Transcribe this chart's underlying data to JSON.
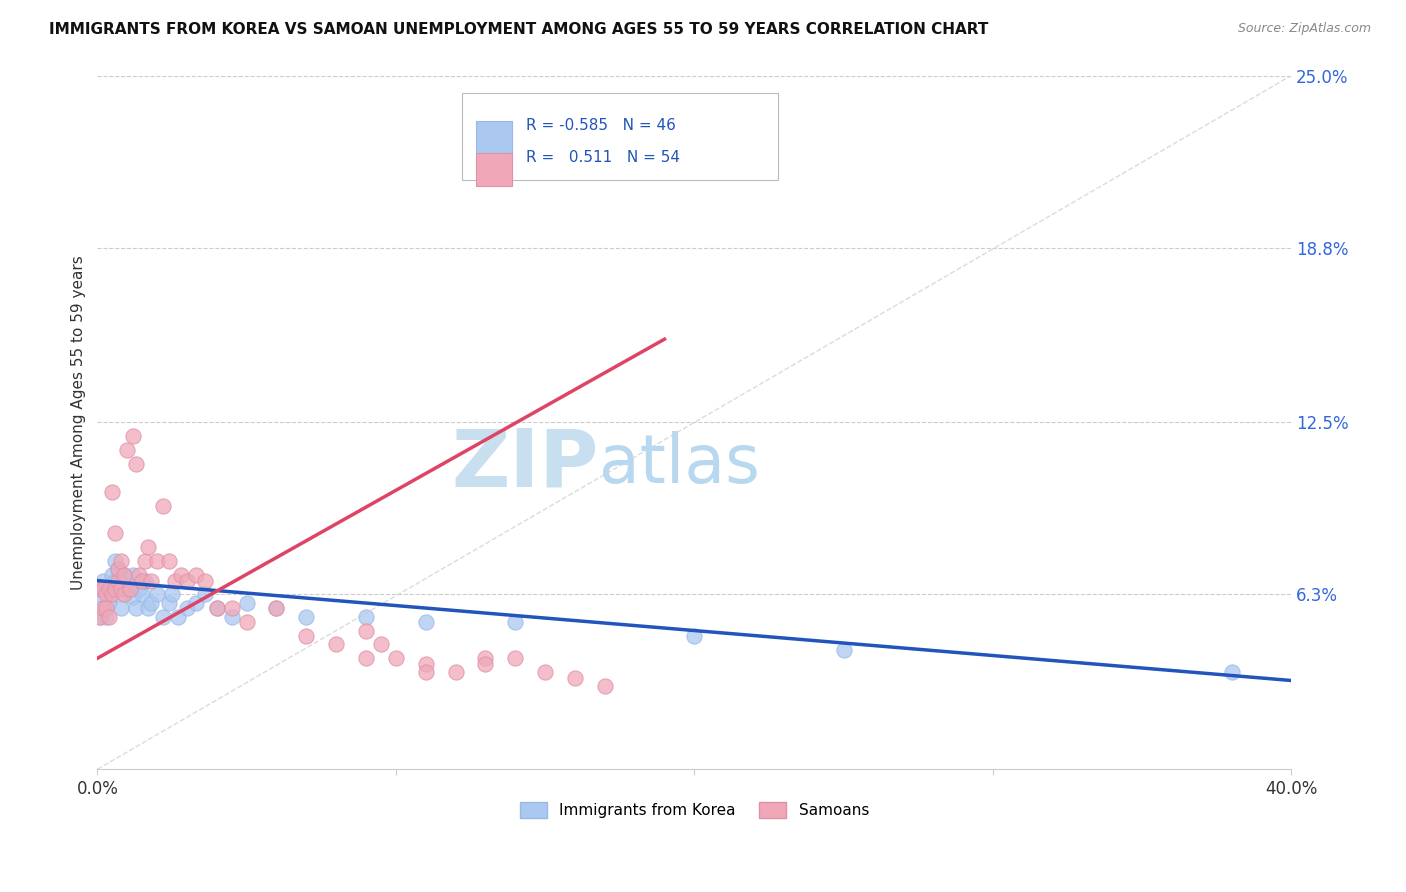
{
  "title": "IMMIGRANTS FROM KOREA VS SAMOAN UNEMPLOYMENT AMONG AGES 55 TO 59 YEARS CORRELATION CHART",
  "source": "Source: ZipAtlas.com",
  "ylabel": "Unemployment Among Ages 55 to 59 years",
  "xlim": [
    0.0,
    0.4
  ],
  "ylim": [
    0.0,
    0.25
  ],
  "xticks": [
    0.0,
    0.1,
    0.2,
    0.3,
    0.4
  ],
  "xticklabels": [
    "0.0%",
    "",
    "",
    "",
    "40.0%"
  ],
  "ytick_positions": [
    0.063,
    0.125,
    0.188,
    0.25
  ],
  "ytick_labels": [
    "6.3%",
    "12.5%",
    "18.8%",
    "25.0%"
  ],
  "background_color": "#ffffff",
  "watermark_zip": "ZIP",
  "watermark_atlas": "atlas",
  "watermark_zip_color": "#c8dff0",
  "watermark_atlas_color": "#b8d8f0",
  "korea_color": "#aac8f0",
  "korea_edge_color": "#99b8e8",
  "samoan_color": "#f0a8b8",
  "samoan_edge_color": "#e090a8",
  "korea_line_color": "#2255bb",
  "samoan_line_color": "#dd4466",
  "dashed_line_color": "#cccccc",
  "legend_korea_label": "Immigrants from Korea",
  "legend_samoan_label": "Samoans",
  "korea_R": -0.585,
  "korea_N": 46,
  "samoan_R": 0.511,
  "samoan_N": 54,
  "korea_scatter_x": [
    0.001,
    0.001,
    0.002,
    0.002,
    0.003,
    0.003,
    0.004,
    0.005,
    0.005,
    0.006,
    0.006,
    0.007,
    0.007,
    0.008,
    0.008,
    0.009,
    0.009,
    0.01,
    0.011,
    0.012,
    0.012,
    0.013,
    0.014,
    0.015,
    0.016,
    0.017,
    0.018,
    0.02,
    0.022,
    0.024,
    0.025,
    0.027,
    0.03,
    0.033,
    0.036,
    0.04,
    0.045,
    0.05,
    0.06,
    0.07,
    0.09,
    0.11,
    0.14,
    0.2,
    0.25,
    0.38
  ],
  "korea_scatter_y": [
    0.063,
    0.055,
    0.068,
    0.058,
    0.065,
    0.055,
    0.06,
    0.063,
    0.07,
    0.068,
    0.075,
    0.065,
    0.072,
    0.068,
    0.058,
    0.07,
    0.063,
    0.068,
    0.065,
    0.062,
    0.07,
    0.058,
    0.065,
    0.063,
    0.068,
    0.058,
    0.06,
    0.063,
    0.055,
    0.06,
    0.063,
    0.055,
    0.058,
    0.06,
    0.063,
    0.058,
    0.055,
    0.06,
    0.058,
    0.055,
    0.055,
    0.053,
    0.053,
    0.048,
    0.043,
    0.035
  ],
  "samoan_scatter_x": [
    0.001,
    0.001,
    0.002,
    0.002,
    0.003,
    0.003,
    0.004,
    0.004,
    0.005,
    0.005,
    0.006,
    0.006,
    0.007,
    0.007,
    0.008,
    0.008,
    0.009,
    0.009,
    0.01,
    0.011,
    0.012,
    0.013,
    0.014,
    0.015,
    0.016,
    0.017,
    0.018,
    0.02,
    0.022,
    0.024,
    0.026,
    0.028,
    0.03,
    0.033,
    0.036,
    0.04,
    0.045,
    0.05,
    0.06,
    0.07,
    0.08,
    0.09,
    0.1,
    0.11,
    0.12,
    0.13,
    0.14,
    0.15,
    0.16,
    0.17,
    0.09,
    0.095,
    0.11,
    0.13
  ],
  "samoan_scatter_y": [
    0.065,
    0.055,
    0.058,
    0.065,
    0.063,
    0.058,
    0.065,
    0.055,
    0.063,
    0.1,
    0.065,
    0.085,
    0.068,
    0.072,
    0.075,
    0.065,
    0.07,
    0.063,
    0.115,
    0.065,
    0.12,
    0.11,
    0.07,
    0.068,
    0.075,
    0.08,
    0.068,
    0.075,
    0.095,
    0.075,
    0.068,
    0.07,
    0.068,
    0.07,
    0.068,
    0.058,
    0.058,
    0.053,
    0.058,
    0.048,
    0.045,
    0.04,
    0.04,
    0.038,
    0.035,
    0.04,
    0.04,
    0.035,
    0.033,
    0.03,
    0.05,
    0.045,
    0.035,
    0.038
  ],
  "korea_line_x": [
    0.0,
    0.4
  ],
  "korea_line_y": [
    0.068,
    0.032
  ],
  "samoan_line_x": [
    0.0,
    0.19
  ],
  "samoan_line_y": [
    0.04,
    0.155
  ]
}
